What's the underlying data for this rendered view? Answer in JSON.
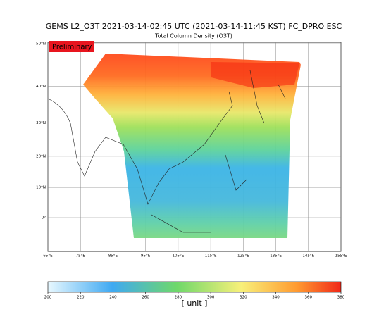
{
  "title": "GEMS L2_O3T 2021-03-14-02:45 UTC (2021-03-14-11:45 KST)  FC_DPRO ESC",
  "subtitle": "Total Column Density (O3T)",
  "badge": "Preliminary",
  "map": {
    "lon_ticks": [
      {
        "value": 65,
        "label": "65°E"
      },
      {
        "value": 75,
        "label": "75°E"
      },
      {
        "value": 85,
        "label": "85°E"
      },
      {
        "value": 95,
        "label": "95°E"
      },
      {
        "value": 105,
        "label": "105°E"
      },
      {
        "value": 115,
        "label": "115°E"
      },
      {
        "value": 125,
        "label": "125°E"
      },
      {
        "value": 135,
        "label": "135°E"
      },
      {
        "value": 145,
        "label": "145°E"
      },
      {
        "value": 155,
        "label": "155°E"
      }
    ],
    "lat_ticks": [
      {
        "value": 0,
        "label": "0°"
      },
      {
        "value": 10,
        "label": "10°N"
      },
      {
        "value": 20,
        "label": "20°N"
      },
      {
        "value": 30,
        "label": "30°N"
      },
      {
        "value": 40,
        "label": "40°N"
      },
      {
        "value": 50,
        "label": "50°N"
      }
    ]
  },
  "colorbar": {
    "lim": [
      200,
      380
    ],
    "ticks": [
      200,
      220,
      240,
      260,
      280,
      300,
      320,
      340,
      360,
      380
    ],
    "label": "[ unit ]"
  }
}
